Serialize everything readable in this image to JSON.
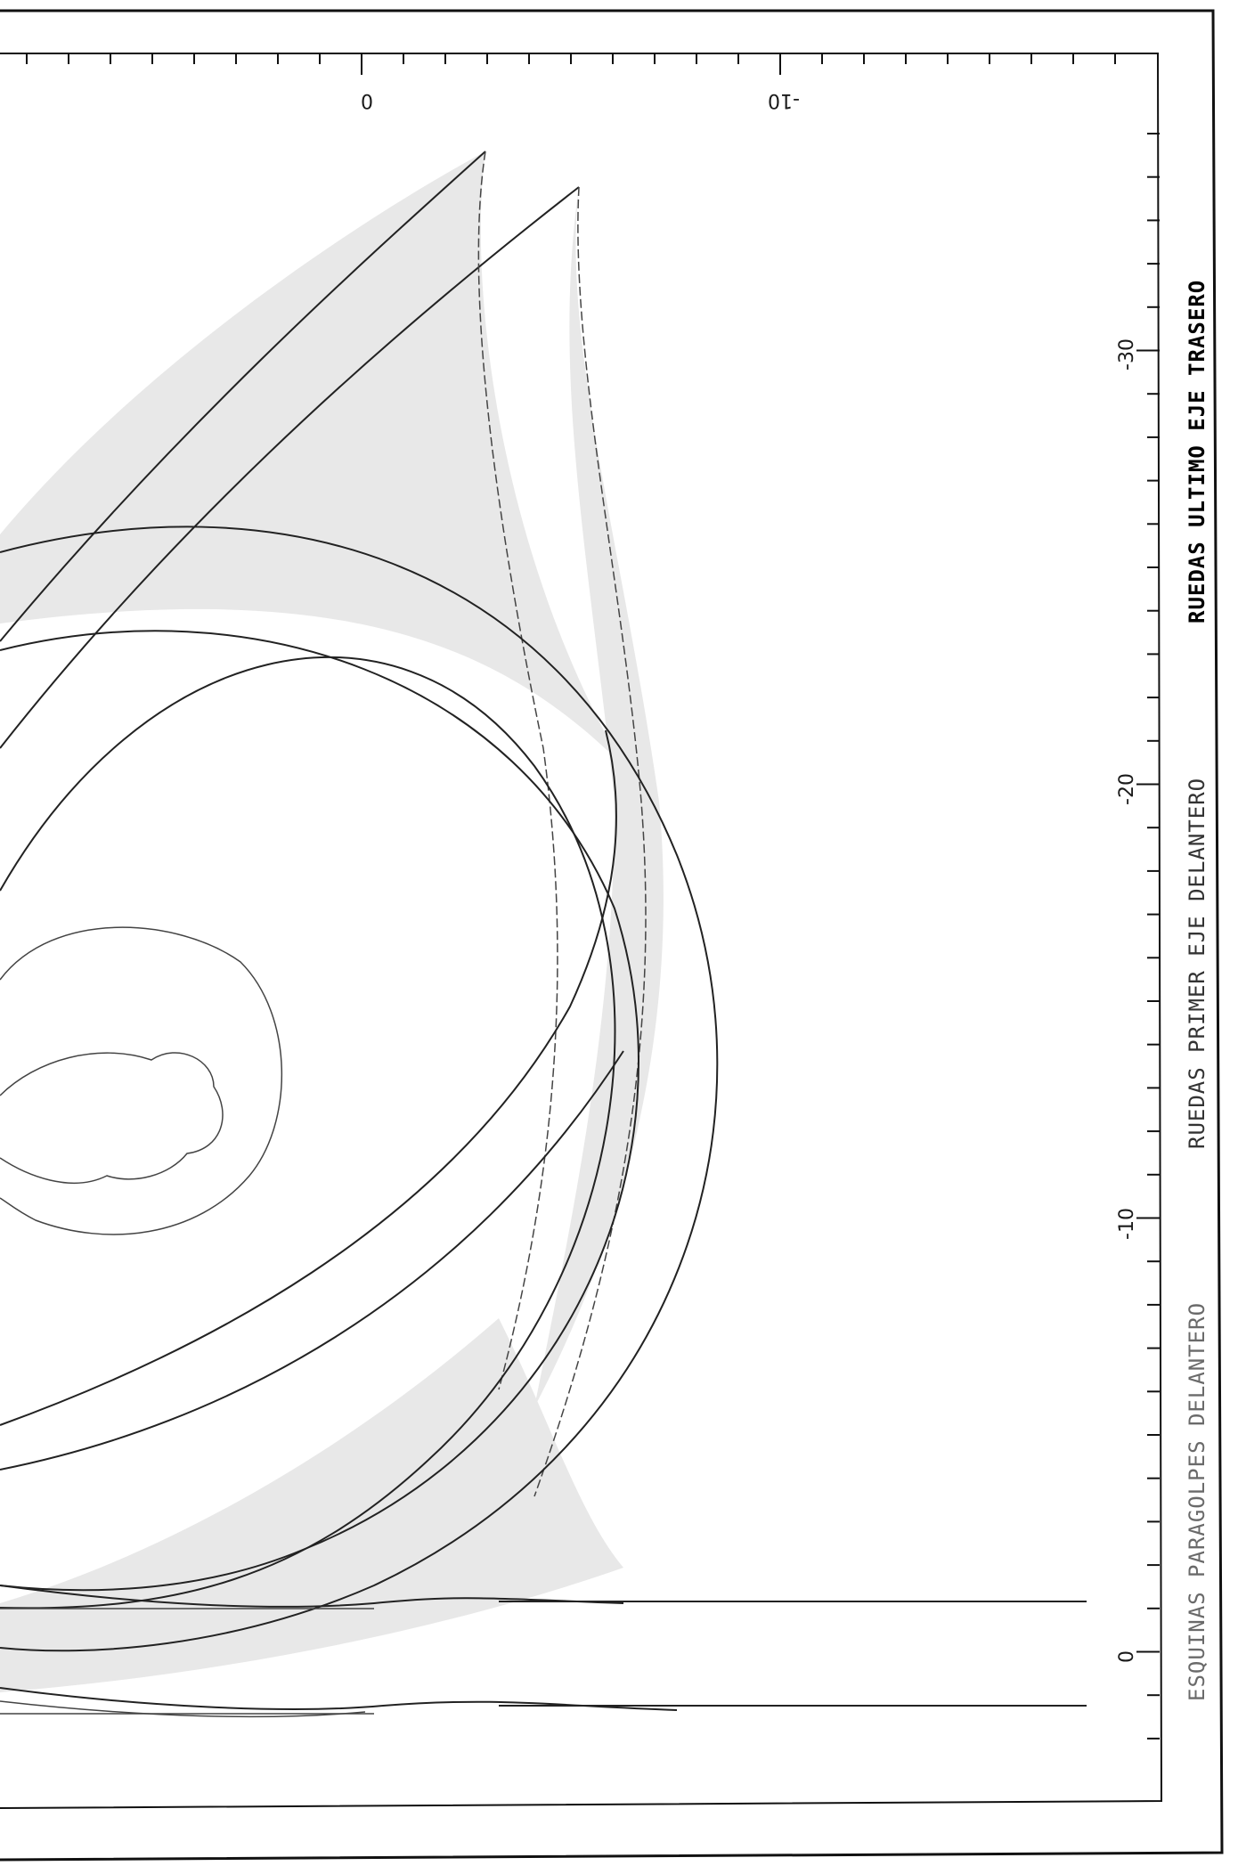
{
  "top_axis": {
    "tick_labels": [
      "0",
      "-10"
    ]
  },
  "right_axis": {
    "tick_labels": [
      "0",
      "-10",
      "-20",
      "-30"
    ]
  },
  "legend": [
    {
      "label": "ESQUINAS PARAGOLPES DELANTERO",
      "color": "#6a6a6a"
    },
    {
      "label": "RUEDAS PRIMER EJE DELANTERO",
      "color": "#333333"
    },
    {
      "label": "RUEDAS ULTIMO EJE TRASERO",
      "color": "#000000"
    }
  ],
  "colors": {
    "ink": "#222222",
    "shade": "#e8e8e8",
    "frame": "#111111"
  }
}
